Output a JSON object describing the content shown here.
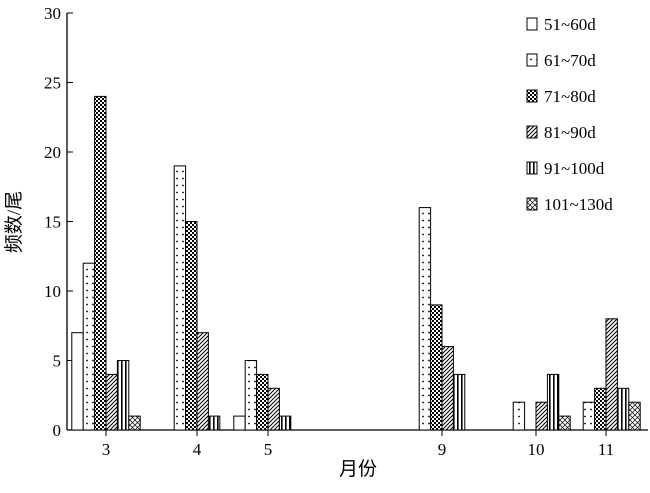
{
  "chart_data": {
    "type": "bar",
    "title": "",
    "xlabel": "月份",
    "ylabel": "频数/尾",
    "ylim": [
      0,
      30
    ],
    "yticks": [
      0,
      5,
      10,
      15,
      20,
      25,
      30
    ],
    "grid": false,
    "legend_position": "top-right",
    "categories": [
      "3",
      "4",
      "5",
      "9",
      "10",
      "11"
    ],
    "series": [
      {
        "name": "51~60d",
        "pattern": "blank",
        "values": [
          7,
          0,
          1,
          0,
          0,
          0
        ]
      },
      {
        "name": "61~70d",
        "pattern": "dots",
        "values": [
          12,
          19,
          5,
          16,
          2,
          2
        ]
      },
      {
        "name": "71~80d",
        "pattern": "dense-grid",
        "values": [
          24,
          15,
          4,
          9,
          0,
          3
        ]
      },
      {
        "name": "81~90d",
        "pattern": "diagonal",
        "values": [
          4,
          7,
          3,
          6,
          2,
          8
        ]
      },
      {
        "name": "91~100d",
        "pattern": "vertical",
        "values": [
          5,
          1,
          1,
          4,
          4,
          3
        ]
      },
      {
        "name": "101~130d",
        "pattern": "crosshatch",
        "values": [
          1,
          0,
          0,
          0,
          1,
          2
        ]
      }
    ]
  }
}
